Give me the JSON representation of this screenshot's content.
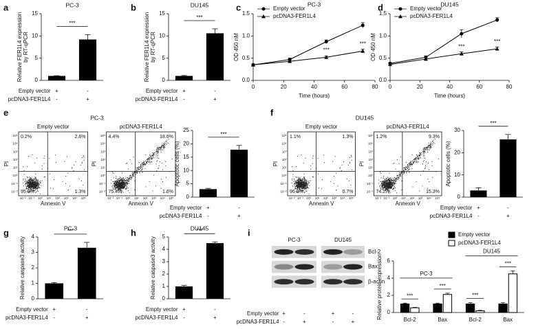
{
  "chart_data": [
    {
      "type": "bar",
      "panel": "a",
      "title": "PC-3",
      "y_label": [
        "Relative FER1L4 expression",
        "by RT-qPCR"
      ],
      "values": [
        1.0,
        9.2
      ],
      "errors": [
        0.05,
        1.1
      ],
      "color": "#000000",
      "ylim": [
        0,
        15
      ],
      "yticks": [
        0,
        5,
        10,
        15
      ],
      "significance": "***",
      "conditions": [
        {
          "name": "Empty vector",
          "signs": [
            "+",
            "-"
          ]
        },
        {
          "name": "pcDNA3-FER1L4",
          "signs": [
            "-",
            "+"
          ]
        }
      ]
    },
    {
      "type": "bar",
      "panel": "b",
      "title": "DU145",
      "y_label": [
        "Relative FER1L4 expression",
        "by RT-qPCR"
      ],
      "values": [
        1.0,
        10.6
      ],
      "errors": [
        0.1,
        1.0
      ],
      "color": "#000000",
      "ylim": [
        0,
        15
      ],
      "yticks": [
        0,
        5,
        10,
        15
      ],
      "significance": "***",
      "conditions": [
        {
          "name": "Empty vector",
          "signs": [
            "+",
            "-"
          ]
        },
        {
          "name": "pcDNA3-FER1L4",
          "signs": [
            "-",
            "+"
          ]
        }
      ]
    },
    {
      "type": "line",
      "panel": "c",
      "title": "PC-3",
      "x_label": "Time (hours)",
      "y_label": "OD 450 nM",
      "x": [
        0,
        24,
        48,
        72
      ],
      "xlim": [
        0,
        80
      ],
      "xticks": [
        0,
        20,
        40,
        60,
        80
      ],
      "ylim": [
        0,
        1.5
      ],
      "yticks": [
        {
          "value": 0,
          "label": "0.0"
        },
        0.5,
        {
          "value": 1,
          "label": "1.0"
        },
        1.5
      ],
      "series": [
        {
          "name": "Empty vector",
          "marker": "circle",
          "color": "#000000",
          "values": [
            0.35,
            0.47,
            0.87,
            1.24
          ],
          "errors": [
            0.02,
            0.03,
            0.04,
            0.06
          ]
        },
        {
          "name": "pcDNA3-FER1L4",
          "marker": "triangle",
          "color": "#000000",
          "values": [
            0.35,
            0.43,
            0.52,
            0.66
          ],
          "errors": [
            0.02,
            0.02,
            0.03,
            0.04
          ]
        }
      ],
      "annotations": [
        {
          "text": "***",
          "x": 48
        },
        {
          "text": "***",
          "x": 72
        }
      ]
    },
    {
      "type": "line",
      "panel": "d",
      "title": "DU145",
      "x_label": "Time (hours)",
      "y_label": "OD 450 nM",
      "x": [
        0,
        24,
        48,
        72
      ],
      "xlim": [
        0,
        80
      ],
      "xticks": [
        0,
        20,
        40,
        60,
        80
      ],
      "ylim": [
        0,
        1.5
      ],
      "yticks": [
        {
          "value": 0,
          "label": "0.0"
        },
        0.5,
        {
          "value": 1,
          "label": "1.0"
        },
        1.5
      ],
      "series": [
        {
          "name": "Empty vector",
          "marker": "circle",
          "color": "#000000",
          "values": [
            0.38,
            0.52,
            1.05,
            1.36
          ],
          "errors": [
            0.02,
            0.03,
            0.09,
            0.05
          ]
        },
        {
          "name": "pcDNA3-FER1L4",
          "marker": "triangle",
          "color": "#000000",
          "values": [
            0.36,
            0.48,
            0.6,
            0.71
          ],
          "errors": [
            0.02,
            0.03,
            0.04,
            0.04
          ]
        }
      ],
      "annotations": [
        {
          "text": "***",
          "x": 48
        },
        {
          "text": "***",
          "x": 72
        }
      ]
    },
    {
      "type": "flow",
      "panel": "e",
      "title": "PC-3",
      "x_label": "Annexin V",
      "y_label": "PI",
      "axis_ticks": [
        "10⁻²",
        "10⁻¹",
        "10⁰",
        "10¹",
        "10²",
        "10³",
        "10⁴",
        "10⁵"
      ],
      "plots": [
        {
          "title": "Empty vector",
          "quadrants": [
            "0.2%",
            "2.6%",
            "95.9%",
            "1.3%"
          ]
        },
        {
          "title": "pcDNA3-FER1L4",
          "quadrants": [
            "4.4%",
            "18.6%",
            "75.4%",
            "1.6%"
          ]
        }
      ]
    },
    {
      "type": "bar",
      "y_label": "Apoptotic cells (%)",
      "values": [
        3.0,
        17.8
      ],
      "errors": [
        0.3,
        1.6
      ],
      "color": "#000000",
      "ylim": [
        0,
        25
      ],
      "yticks": [
        0,
        5,
        10,
        15,
        20,
        25
      ],
      "significance": "***",
      "conditions": [
        {
          "name": "Empty vector",
          "signs": [
            "+",
            "-"
          ]
        },
        {
          "name": "pcDNA3-FER1L4",
          "signs": [
            "-",
            "+"
          ]
        }
      ]
    },
    {
      "type": "flow",
      "panel": "f",
      "title": "DU145",
      "x_label": "Annexin V",
      "y_label": "PI",
      "axis_ticks": [
        "10⁻²",
        "10⁻¹",
        "10⁰",
        "10¹",
        "10²",
        "10³",
        "10⁴",
        "10⁵"
      ],
      "plots": [
        {
          "title": "Empty vector",
          "quadrants": [
            "1.1%",
            "1.3%",
            "96.9%",
            "0.7%"
          ]
        },
        {
          "title": "pcDNA3-FER1L4",
          "quadrants": [
            "1.2%",
            "9.3%",
            "74.2%",
            "15.3%"
          ]
        }
      ]
    },
    {
      "type": "bar",
      "y_label": "Apoptotic cells (%)",
      "values": [
        3.0,
        26.0
      ],
      "errors": [
        1.2,
        2.2
      ],
      "color": "#000000",
      "ylim": [
        0,
        30
      ],
      "yticks": [
        0,
        10,
        20,
        30
      ],
      "significance": "***",
      "conditions": [
        {
          "name": "Empty vector",
          "signs": [
            "+",
            "-"
          ]
        },
        {
          "name": "pcDNA3-FER1L4",
          "signs": [
            "-",
            "+"
          ]
        }
      ]
    },
    {
      "type": "bar",
      "panel": "g",
      "title": "PC-3",
      "y_label": "Relative caspase3 activity",
      "values": [
        1.0,
        3.3
      ],
      "errors": [
        0.05,
        0.35
      ],
      "color": "#000000",
      "ylim": [
        0,
        4
      ],
      "yticks": [
        0,
        1,
        2,
        3,
        4
      ],
      "significance": "***",
      "conditions": [
        {
          "name": "Empty vector",
          "signs": [
            "+",
            "-"
          ]
        },
        {
          "name": "pcDNA3-FER1L4",
          "signs": [
            "-",
            "+"
          ]
        }
      ]
    },
    {
      "type": "bar",
      "panel": "h",
      "title": "DU145",
      "y_label": "Relative caspase3 activity",
      "values": [
        1.0,
        4.5
      ],
      "errors": [
        0.08,
        0.1
      ],
      "color": "#000000",
      "ylim": [
        0,
        5
      ],
      "yticks": [
        0,
        1,
        2,
        3,
        4,
        5
      ],
      "significance": "***",
      "conditions": [
        {
          "name": "Empty vector",
          "signs": [
            "+",
            "-"
          ]
        },
        {
          "name": "pcDNA3-FER1L4",
          "signs": [
            "-",
            "+"
          ]
        }
      ]
    },
    {
      "type": "blot",
      "panel": "i",
      "groups": [
        "PC-3",
        "DU145"
      ],
      "proteins": [
        "Bcl-2",
        "Bax",
        "β-actin"
      ],
      "conditions": [
        {
          "name": "Empty vector",
          "signs": [
            "+",
            "-",
            "+",
            "-"
          ]
        },
        {
          "name": "pcDNA3-FER1L4",
          "signs": [
            "-",
            "+",
            "-",
            "+"
          ]
        }
      ]
    },
    {
      "type": "grouped_bar",
      "y_label": "Relative protein expression",
      "categories": [
        "Bcl-2",
        "Bax",
        "Bcl-2",
        "Bax"
      ],
      "group_labels": [
        "PC-3",
        "DU145"
      ],
      "ylim": [
        0,
        6
      ],
      "yticks": [
        0,
        2,
        4,
        6
      ],
      "significance": [
        "***",
        "***",
        "***",
        "***"
      ],
      "series": [
        {
          "name": "Empty vector",
          "color": "#000000",
          "values": [
            1.0,
            1.0,
            1.0,
            1.0
          ],
          "errors": [
            0.1,
            0.1,
            0.15,
            0.15
          ]
        },
        {
          "name": "pcDNA3-FER1L4",
          "color": "#ffffff",
          "values": [
            0.55,
            2.1,
            0.2,
            4.5
          ],
          "errors": [
            0.05,
            0.15,
            0.05,
            0.35
          ]
        }
      ]
    }
  ]
}
